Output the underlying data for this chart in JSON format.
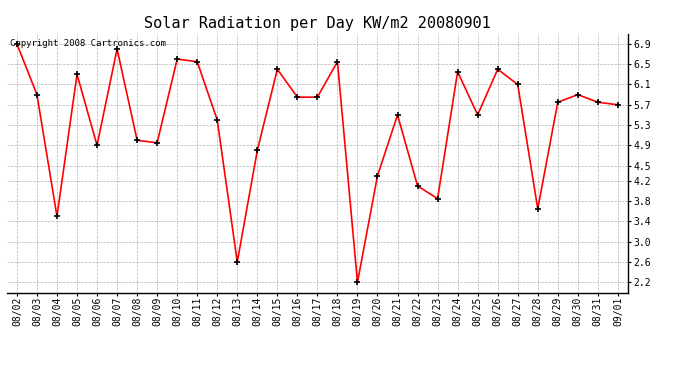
{
  "title": "Solar Radiation per Day KW/m2 20080901",
  "copyright": "Copyright 2008 Cartronics.com",
  "dates": [
    "08/02",
    "08/03",
    "08/04",
    "08/05",
    "08/06",
    "08/07",
    "08/08",
    "08/09",
    "08/10",
    "08/11",
    "08/12",
    "08/13",
    "08/14",
    "08/15",
    "08/16",
    "08/17",
    "08/18",
    "08/19",
    "08/20",
    "08/21",
    "08/22",
    "08/23",
    "08/24",
    "08/25",
    "08/26",
    "08/27",
    "08/28",
    "08/29",
    "08/30",
    "08/31",
    "09/01"
  ],
  "values": [
    6.9,
    5.9,
    3.5,
    6.3,
    4.9,
    6.8,
    5.0,
    4.95,
    6.6,
    6.55,
    5.4,
    2.6,
    4.8,
    6.4,
    5.85,
    5.85,
    6.55,
    2.2,
    4.3,
    5.5,
    4.1,
    3.85,
    6.35,
    5.5,
    6.4,
    6.1,
    3.65,
    5.75,
    5.9,
    5.75,
    5.7
  ],
  "line_color": "#ff0000",
  "marker_color": "#000000",
  "bg_color": "#ffffff",
  "grid_color": "#aaaaaa",
  "ylim": [
    2.0,
    7.1
  ],
  "yticks": [
    2.2,
    2.6,
    3.0,
    3.4,
    3.8,
    4.2,
    4.5,
    4.9,
    5.3,
    5.7,
    6.1,
    6.5,
    6.9
  ],
  "title_fontsize": 11,
  "tick_fontsize": 7,
  "copyright_fontsize": 6.5
}
